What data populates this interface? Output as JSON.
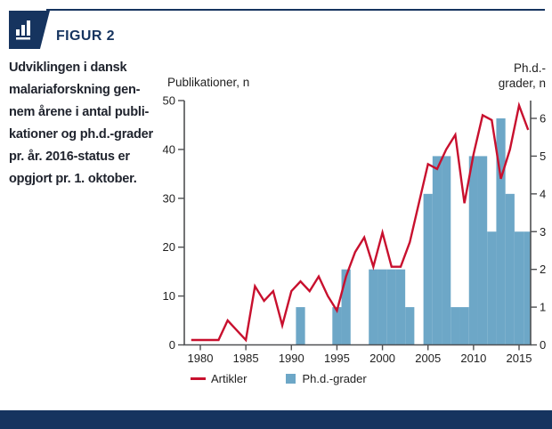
{
  "page": {
    "background": "#ffffff",
    "accent_navy": "#16345f"
  },
  "header": {
    "figure_label": "FIGUR 2"
  },
  "caption": {
    "text": "Udviklingen i dansk\nmalariaforskning gen-\nnem årene i antal publi-\nkationer og ph.d.-grader\npr. år. 2016-status er\nopgjort pr. 1. oktober."
  },
  "chart_data": {
    "type": "line+bar",
    "left_axis": {
      "label": "Publikationer, n",
      "min": 0,
      "max": 50,
      "ticks": [
        0,
        10,
        20,
        30,
        40,
        50
      ]
    },
    "right_axis": {
      "label": "Ph.d.-\ngrader, n",
      "min": 0,
      "max": 6,
      "ticks": [
        0,
        1,
        2,
        3,
        4,
        5,
        6
      ]
    },
    "x_axis": {
      "ticks": [
        1980,
        1985,
        1990,
        1995,
        2000,
        2005,
        2010,
        2015
      ],
      "range": [
        1978.2,
        2016.5
      ]
    },
    "series": [
      {
        "name": "Artikler",
        "type": "line",
        "axis": "left",
        "color": "#c8102e",
        "x": [
          1979,
          1980,
          1981,
          1982,
          1983,
          1984,
          1985,
          1986,
          1987,
          1988,
          1989,
          1990,
          1991,
          1992,
          1993,
          1994,
          1995,
          1996,
          1997,
          1998,
          1999,
          2000,
          2001,
          2002,
          2003,
          2004,
          2005,
          2006,
          2007,
          2008,
          2009,
          2010,
          2011,
          2012,
          2013,
          2014,
          2015,
          2016
        ],
        "values": [
          1,
          1,
          1,
          1,
          5,
          3,
          1,
          12,
          9,
          11,
          4,
          11,
          13,
          11,
          14,
          10,
          7,
          14,
          19,
          22,
          16,
          23,
          16,
          16,
          21,
          29,
          37,
          36,
          40,
          43,
          29,
          39,
          47,
          46,
          34,
          40,
          49,
          44
        ]
      },
      {
        "name": "Ph.d.-grader",
        "type": "bar",
        "axis": "right",
        "color": "#6da7c7",
        "x": [
          1991,
          1995,
          1996,
          1999,
          2000,
          2001,
          2002,
          2003,
          2005,
          2006,
          2007,
          2008,
          2009,
          2010,
          2011,
          2012,
          2013,
          2014,
          2015,
          2016
        ],
        "values": [
          1,
          1,
          2,
          2,
          2,
          2,
          2,
          1,
          4,
          5,
          5,
          1,
          1,
          5,
          5,
          3,
          6,
          4,
          3,
          3
        ]
      }
    ],
    "legend": [
      {
        "label": "Artikler",
        "color": "#c8102e",
        "type": "line"
      },
      {
        "label": "Ph.d.-grader",
        "color": "#6da7c7",
        "type": "square"
      }
    ]
  }
}
